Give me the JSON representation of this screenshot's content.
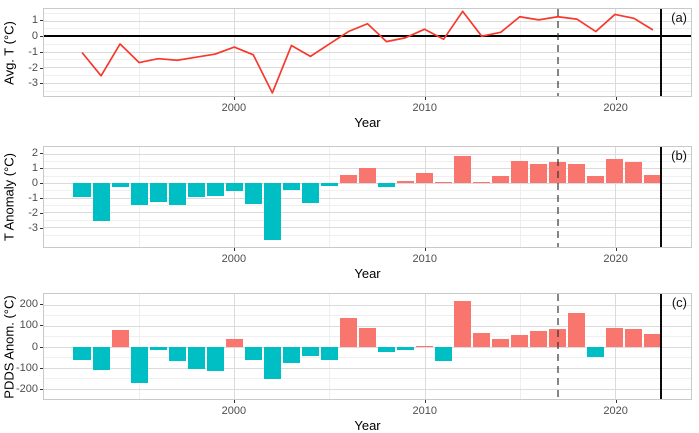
{
  "colors": {
    "bar_positive": "#F8766D",
    "bar_negative": "#00BFC4",
    "line": "#F6392C",
    "vline_dashed": "#6E6E6E",
    "vline_solid": "#000000",
    "grid_major": "#DBDBDB",
    "grid_minor": "#EFEFEF",
    "panel_border": "#C9C9C9",
    "tick_label": "#4D4D4D",
    "axis_title": "#000000"
  },
  "chart_data": [
    {
      "id": "a",
      "type": "line",
      "panel_label": "(a)",
      "ylabel": "Avg. T (°C)",
      "xlabel": "Year",
      "years": [
        1992,
        1993,
        1994,
        1995,
        1996,
        1997,
        1998,
        1999,
        2000,
        2001,
        2002,
        2003,
        2004,
        2005,
        2006,
        2007,
        2008,
        2009,
        2010,
        2011,
        2012,
        2013,
        2014,
        2015,
        2016,
        2017,
        2018,
        2019,
        2020,
        2021,
        2022
      ],
      "values": [
        -1.05,
        -2.55,
        -0.5,
        -1.7,
        -1.45,
        -1.55,
        -1.35,
        -1.15,
        -0.7,
        -1.2,
        -3.65,
        -0.6,
        -1.3,
        -0.5,
        0.3,
        0.8,
        -0.35,
        -0.1,
        0.45,
        -0.2,
        1.6,
        0,
        0.25,
        1.25,
        1.05,
        1.25,
        1.1,
        0.3,
        1.4,
        1.15,
        0.4
      ],
      "yticks": [
        1,
        0,
        -1,
        -2,
        -3
      ],
      "yticks_minor": [
        1.5,
        0.5,
        -0.5,
        -1.5,
        -2.5,
        -3.5
      ],
      "xticks": [
        2000,
        2010,
        2020
      ],
      "xticks_minor": [
        1995,
        2005,
        2015
      ],
      "xlim": [
        1990,
        2024
      ],
      "ylim": [
        -3.85,
        1.75
      ],
      "zero_line": 0,
      "vline_dashed_year": 2017,
      "vline_solid_year": 2022.4,
      "grid": "on",
      "legend": "none"
    },
    {
      "id": "b",
      "type": "bar",
      "panel_label": "(b)",
      "ylabel": "T Anomaly (°C)",
      "xlabel": "Year",
      "years": [
        1992,
        1993,
        1994,
        1995,
        1996,
        1997,
        1998,
        1999,
        2000,
        2001,
        2002,
        2003,
        2004,
        2005,
        2006,
        2007,
        2008,
        2009,
        2010,
        2011,
        2012,
        2013,
        2014,
        2015,
        2016,
        2017,
        2018,
        2019,
        2020,
        2021,
        2022
      ],
      "values": [
        -0.95,
        -2.6,
        -0.3,
        -1.5,
        -1.3,
        -1.5,
        -0.95,
        -0.85,
        -0.55,
        -1.4,
        -3.9,
        -0.5,
        -1.35,
        -0.2,
        0.55,
        1.0,
        -0.25,
        0.15,
        0.65,
        0.05,
        1.85,
        0.1,
        0.45,
        1.5,
        1.3,
        1.45,
        1.3,
        0.5,
        1.65,
        1.45,
        0.55
      ],
      "yticks": [
        2,
        1,
        0,
        -1,
        -2,
        -3
      ],
      "yticks_minor": [
        1.5,
        0.5,
        -0.5,
        -1.5,
        -2.5,
        -3.5
      ],
      "xticks": [
        2000,
        2010,
        2020
      ],
      "xticks_minor": [
        1995,
        2005,
        2015
      ],
      "xlim": [
        1990,
        2024
      ],
      "ylim": [
        -4.35,
        2.45
      ],
      "vline_dashed_year": 2017,
      "vline_solid_year": 2022.4,
      "grid": "on",
      "legend": "none"
    },
    {
      "id": "c",
      "type": "bar",
      "panel_label": "(c)",
      "ylabel": "PDDS Anom. (°C)",
      "xlabel": "Year",
      "years": [
        1992,
        1993,
        1994,
        1995,
        1996,
        1997,
        1998,
        1999,
        2000,
        2001,
        2002,
        2003,
        2004,
        2005,
        2006,
        2007,
        2008,
        2009,
        2010,
        2011,
        2012,
        2013,
        2014,
        2015,
        2016,
        2017,
        2018,
        2019,
        2020,
        2021,
        2022
      ],
      "values": [
        -65,
        -110,
        80,
        -175,
        -15,
        -70,
        -105,
        -115,
        35,
        -65,
        -155,
        -80,
        -45,
        -65,
        135,
        90,
        -25,
        -15,
        5,
        -70,
        220,
        65,
        35,
        55,
        75,
        85,
        160,
        -50,
        90,
        85,
        60
      ],
      "yticks": [
        200,
        100,
        0,
        -100,
        -200
      ],
      "yticks_minor": [
        150,
        50,
        -50,
        -150
      ],
      "xticks": [
        2000,
        2010,
        2020
      ],
      "xticks_minor": [
        1995,
        2005,
        2015
      ],
      "xlim": [
        1990,
        2024
      ],
      "ylim": [
        -250,
        252
      ],
      "vline_dashed_year": 2017,
      "vline_solid_year": 2022.4,
      "grid": "on",
      "legend": "none"
    }
  ]
}
